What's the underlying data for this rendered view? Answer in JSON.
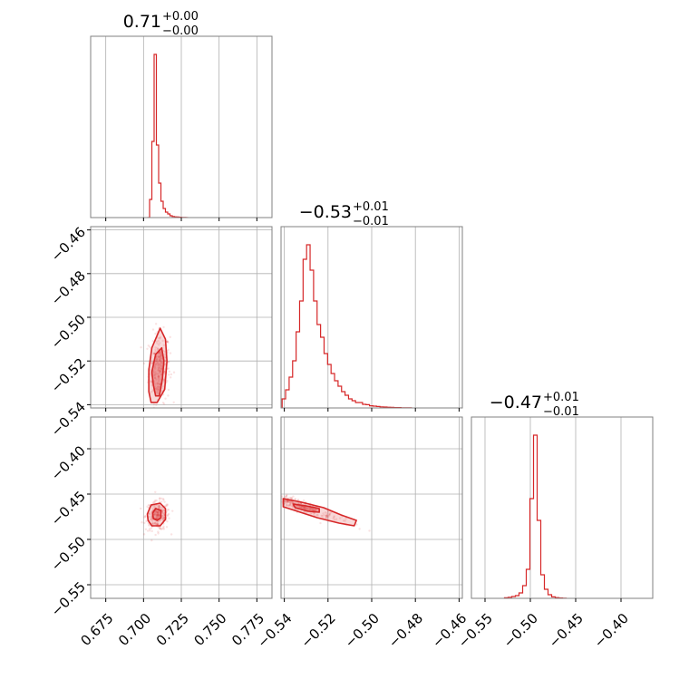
{
  "chart_data": {
    "type": "corner",
    "color": "#d62728",
    "grid": true,
    "parameters": [
      {
        "index": 0,
        "title": {
          "median": "0.71",
          "plus": "+0.00",
          "minus": "−0.00"
        },
        "range": [
          0.665,
          0.785
        ],
        "ticks": [
          0.675,
          0.7,
          0.725,
          0.75,
          0.775
        ],
        "tick_labels": [
          "0.675",
          "0.700",
          "0.725",
          "0.750",
          "0.775"
        ]
      },
      {
        "index": 1,
        "title": {
          "median": "−0.53",
          "plus": "+0.01",
          "minus": "−0.01"
        },
        "range": [
          -0.5415,
          -0.4585
        ],
        "ticks": [
          -0.54,
          -0.52,
          -0.5,
          -0.48,
          -0.46
        ],
        "tick_labels": [
          "−0.54",
          "−0.52",
          "−0.50",
          "−0.48",
          "−0.46"
        ]
      },
      {
        "index": 2,
        "title": {
          "median": "−0.47",
          "plus": "+0.01",
          "minus": "−0.01"
        },
        "range": [
          -0.565,
          -0.365
        ],
        "ticks": [
          -0.55,
          -0.5,
          -0.45,
          -0.4
        ],
        "tick_labels": [
          "−0.55",
          "−0.50",
          "−0.45",
          "−0.40"
        ]
      }
    ],
    "histograms": [
      {
        "param": 0,
        "edges_start": 0.7025,
        "bin_width": 0.0015,
        "counts": [
          0,
          0.1,
          0.42,
          0.9,
          0.4,
          0.19,
          0.09,
          0.05,
          0.03,
          0.02,
          0.01,
          0.006,
          0.004,
          0.003,
          0.002,
          0.001,
          0.0005,
          0
        ]
      },
      {
        "param": 1,
        "edges_start": -0.541,
        "bin_width": 0.0016,
        "counts": [
          0.05,
          0.1,
          0.17,
          0.26,
          0.42,
          0.59,
          0.82,
          0.9,
          0.76,
          0.59,
          0.46,
          0.39,
          0.3,
          0.24,
          0.19,
          0.15,
          0.12,
          0.09,
          0.07,
          0.05,
          0.04,
          0.03,
          0.03,
          0.02,
          0.018,
          0.012,
          0.01,
          0.008,
          0.006,
          0.005,
          0.004,
          0.003,
          0.002,
          0.002,
          0.001,
          0.001,
          0.001
        ]
      },
      {
        "param": 2,
        "edges_start": -0.5285,
        "bin_width": 0.004,
        "counts": [
          0.003,
          0.006,
          0.01,
          0.015,
          0.03,
          0.07,
          0.16,
          0.55,
          0.9,
          0.43,
          0.13,
          0.05,
          0.02,
          0.008,
          0.004,
          0.002,
          0.001
        ]
      }
    ],
    "pairs": [
      {
        "x_param": 0,
        "y_param": 1,
        "center": [
          0.7105,
          -0.523
        ],
        "spread": [
          0.0035,
          0.008
        ],
        "contours": [
          [
            [
              0.7065,
              -0.531
            ],
            [
              0.7055,
              -0.525
            ],
            [
              0.708,
              -0.517
            ],
            [
              0.712,
              -0.514
            ],
            [
              0.7135,
              -0.52
            ],
            [
              0.7125,
              -0.528
            ],
            [
              0.7105,
              -0.536
            ],
            [
              0.708,
              -0.536
            ]
          ],
          [
            [
              0.7035,
              -0.534
            ],
            [
              0.7035,
              -0.524
            ],
            [
              0.7055,
              -0.514
            ],
            [
              0.711,
              -0.505
            ],
            [
              0.7145,
              -0.51
            ],
            [
              0.7155,
              -0.52
            ],
            [
              0.714,
              -0.533
            ],
            [
              0.709,
              -0.539
            ],
            [
              0.705,
              -0.539
            ]
          ]
        ]
      },
      {
        "x_param": 0,
        "y_param": 2,
        "center": [
          0.7095,
          -0.474
        ],
        "spread": [
          0.004,
          0.008
        ],
        "contours": [
          [
            [
              0.706,
              -0.471
            ],
            [
              0.708,
              -0.466
            ],
            [
              0.7115,
              -0.468
            ],
            [
              0.7115,
              -0.476
            ],
            [
              0.709,
              -0.479
            ],
            [
              0.7065,
              -0.477
            ]
          ],
          [
            [
              0.7025,
              -0.472
            ],
            [
              0.705,
              -0.462
            ],
            [
              0.711,
              -0.46
            ],
            [
              0.7145,
              -0.466
            ],
            [
              0.7145,
              -0.478
            ],
            [
              0.711,
              -0.485
            ],
            [
              0.7055,
              -0.485
            ],
            [
              0.703,
              -0.479
            ]
          ]
        ]
      },
      {
        "x_param": 1,
        "y_param": 2,
        "center": [
          -0.528,
          -0.468
        ],
        "spread": [
          0.0045,
          0.006
        ],
        "contours": [
          [
            [
              -0.536,
              -0.461
            ],
            [
              -0.53,
              -0.463
            ],
            [
              -0.524,
              -0.466
            ],
            [
              -0.524,
              -0.47
            ],
            [
              -0.529,
              -0.469
            ],
            [
              -0.535,
              -0.465
            ]
          ],
          [
            [
              -0.5405,
              -0.455
            ],
            [
              -0.532,
              -0.459
            ],
            [
              -0.522,
              -0.465
            ],
            [
              -0.514,
              -0.473
            ],
            [
              -0.507,
              -0.479
            ],
            [
              -0.508,
              -0.485
            ],
            [
              -0.515,
              -0.482
            ],
            [
              -0.525,
              -0.476
            ],
            [
              -0.534,
              -0.469
            ],
            [
              -0.5405,
              -0.464
            ]
          ]
        ]
      }
    ]
  }
}
